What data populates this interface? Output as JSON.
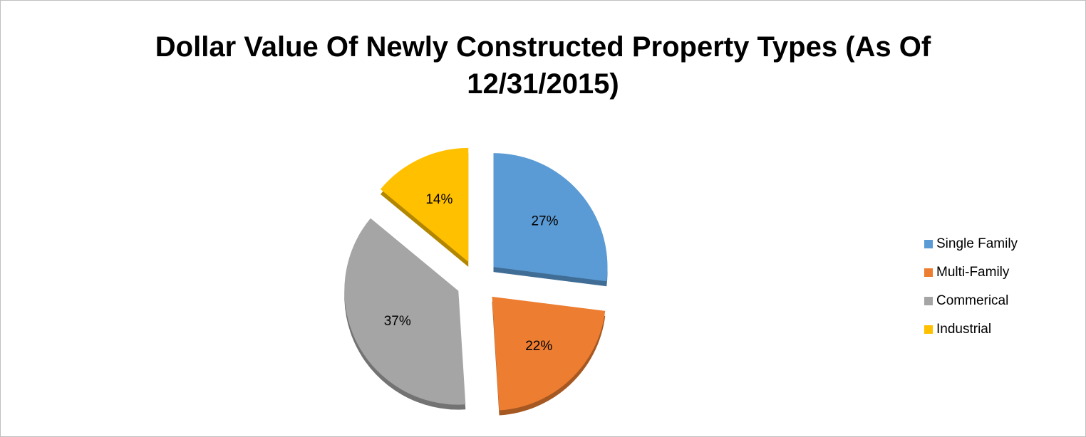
{
  "chart_data": {
    "type": "pie",
    "title": "Dollar Value Of Newly Constructed Property Types (As Of 12/31/2015)",
    "categories": [
      "Single Family",
      "Multi-Family",
      "Commerical",
      "Industrial"
    ],
    "values": [
      27,
      22,
      37,
      14
    ],
    "value_labels": [
      "27%",
      "22%",
      "37%",
      "14%"
    ],
    "colors": [
      "#5b9bd5",
      "#ed7d31",
      "#a5a5a5",
      "#ffc000"
    ],
    "exploded": true,
    "legend": "right"
  }
}
